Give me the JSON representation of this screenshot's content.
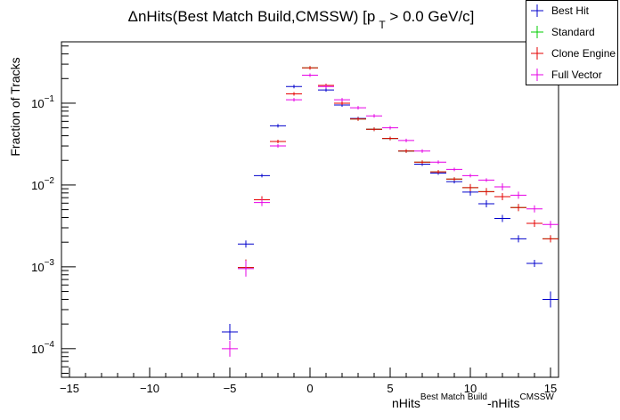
{
  "chart_data": {
    "type": "scatter",
    "title": "ΔnHits(Best Match Build,CMSSW) [p",
    "title_sub": "T",
    "title_tail": " > 0.0 GeV/c]",
    "xlabel": "nHits",
    "xlabel_sup1": "Best Match Build",
    "xlabel_mid": "-nHits",
    "xlabel_sup2": "CMSSW",
    "ylabel": "Fraction of Tracks",
    "xlim": [
      -15.5,
      15.5
    ],
    "ylim_log10": [
      -4.35,
      -0.25
    ],
    "log_y": true,
    "grid": false,
    "legend_position": "top-right",
    "x_ticks": [
      -15,
      -10,
      -5,
      0,
      5,
      10,
      15
    ],
    "x_tick_labels": [
      "−15",
      "−10",
      "−5",
      "0",
      "5",
      "10",
      "15"
    ],
    "y_ticks": [
      {
        "base": "10",
        "exp": "−1",
        "value": 0.1
      },
      {
        "base": "10",
        "exp": "−2",
        "value": 0.01
      },
      {
        "base": "10",
        "exp": "−3",
        "value": 0.001
      },
      {
        "base": "10",
        "exp": "−4",
        "value": 0.0001
      }
    ],
    "series": [
      {
        "name": "Best Hit",
        "color": "#0000cc",
        "points": [
          [
            -5,
            0.00016
          ],
          [
            -4,
            0.0019
          ],
          [
            -3,
            0.013
          ],
          [
            -2,
            0.053
          ],
          [
            -1,
            0.16
          ],
          [
            0,
            0.22
          ],
          [
            1,
            0.145
          ],
          [
            2,
            0.095
          ],
          [
            3,
            0.065
          ],
          [
            4,
            0.048
          ],
          [
            5,
            0.037
          ],
          [
            6,
            0.026
          ],
          [
            7,
            0.018
          ],
          [
            8,
            0.014
          ],
          [
            9,
            0.011
          ],
          [
            10,
            0.0082
          ],
          [
            11,
            0.0059
          ],
          [
            12,
            0.0039
          ],
          [
            13,
            0.0022
          ],
          [
            14,
            0.0011
          ],
          [
            15,
            0.0004
          ]
        ]
      },
      {
        "name": "Standard",
        "color": "#00cc00",
        "points": [
          [
            -4,
            0.00098
          ],
          [
            -3,
            0.0066
          ],
          [
            -2,
            0.034
          ],
          [
            -1,
            0.13
          ],
          [
            0,
            0.27
          ],
          [
            1,
            0.165
          ],
          [
            2,
            0.1
          ],
          [
            3,
            0.064
          ],
          [
            4,
            0.048
          ],
          [
            5,
            0.037
          ],
          [
            6,
            0.026
          ],
          [
            7,
            0.019
          ],
          [
            8,
            0.0145
          ],
          [
            9,
            0.0118
          ],
          [
            10,
            0.0093
          ],
          [
            11,
            0.0083
          ],
          [
            12,
            0.0072
          ],
          [
            13,
            0.0053
          ],
          [
            14,
            0.0034
          ],
          [
            15,
            0.0022
          ]
        ]
      },
      {
        "name": "Clone Engine",
        "color": "#e60000",
        "points": [
          [
            -4,
            0.00098
          ],
          [
            -3,
            0.0066
          ],
          [
            -2,
            0.034
          ],
          [
            -1,
            0.13
          ],
          [
            0,
            0.27
          ],
          [
            1,
            0.165
          ],
          [
            2,
            0.1
          ],
          [
            3,
            0.064
          ],
          [
            4,
            0.048
          ],
          [
            5,
            0.037
          ],
          [
            6,
            0.026
          ],
          [
            7,
            0.019
          ],
          [
            8,
            0.0145
          ],
          [
            9,
            0.0118
          ],
          [
            10,
            0.0093
          ],
          [
            11,
            0.0083
          ],
          [
            12,
            0.0072
          ],
          [
            13,
            0.0053
          ],
          [
            14,
            0.0034
          ],
          [
            15,
            0.0022
          ]
        ]
      },
      {
        "name": "Full Vector",
        "color": "#e600e6",
        "points": [
          [
            -5,
            0.0001
          ],
          [
            -4,
            0.00095
          ],
          [
            -3,
            0.0061
          ],
          [
            -2,
            0.03
          ],
          [
            -1,
            0.11
          ],
          [
            0,
            0.22
          ],
          [
            1,
            0.16
          ],
          [
            2,
            0.11
          ],
          [
            3,
            0.088
          ],
          [
            4,
            0.07
          ],
          [
            5,
            0.05
          ],
          [
            6,
            0.035
          ],
          [
            7,
            0.026
          ],
          [
            8,
            0.019
          ],
          [
            9,
            0.0155
          ],
          [
            10,
            0.013
          ],
          [
            11,
            0.0115
          ],
          [
            12,
            0.0095
          ],
          [
            13,
            0.0075
          ],
          [
            14,
            0.0051
          ],
          [
            15,
            0.0033
          ]
        ]
      }
    ]
  }
}
